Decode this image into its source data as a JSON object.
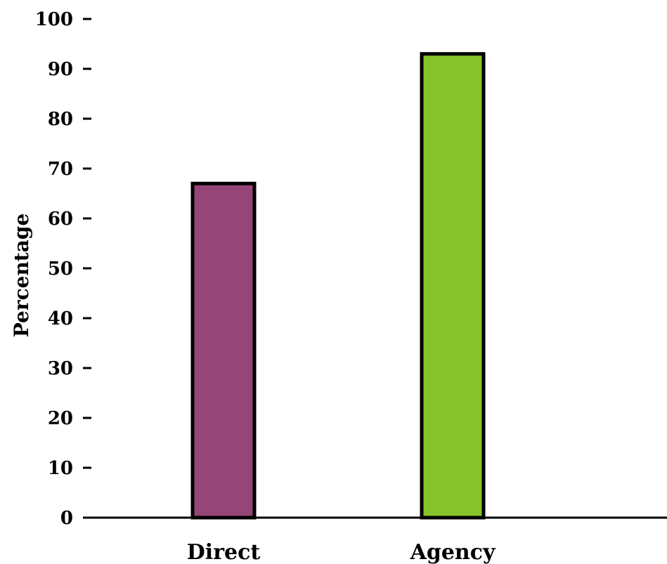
{
  "chart_data": {
    "type": "bar",
    "title": "",
    "xlabel": "",
    "ylabel": "Percentage",
    "categories": [
      "Direct",
      "Agency"
    ],
    "values": [
      67,
      93
    ],
    "bar_colors": [
      "#954577",
      "#86C22A"
    ],
    "bar_outline_color": "#000000",
    "ylim": [
      0,
      100
    ],
    "y_ticks": [
      0,
      10,
      20,
      30,
      40,
      50,
      60,
      70,
      80,
      90,
      100
    ],
    "grid": false,
    "legend": "none"
  }
}
